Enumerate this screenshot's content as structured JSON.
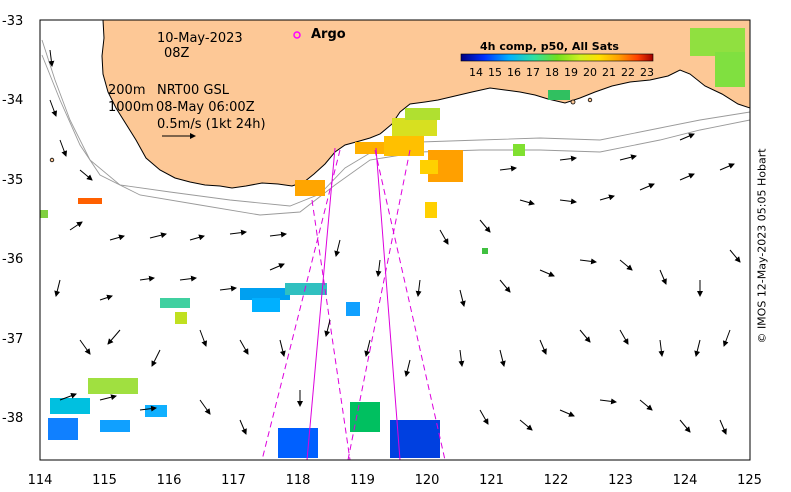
{
  "map": {
    "date_label": "10-May-2023",
    "time_label": "08Z",
    "argo_label": "Argo",
    "sst_title": "4h comp, p50, All Sats",
    "sst_ticks": [
      "14",
      "15",
      "16",
      "17",
      "18",
      "19",
      "20",
      "21",
      "22",
      "23"
    ],
    "depth_label_1": "200m",
    "depth_label_2": "1000m",
    "product_label": "NRT00 GSL",
    "product_date": "08-May 06:00Z",
    "scale_label": "0.5m/s (1kt 24h)",
    "credit": "© IMOS 12-May-2023 05:05 Hobart",
    "lat_labels": [
      "-33",
      "-34",
      "-35",
      "-36",
      "-37",
      "-38"
    ],
    "lon_labels": [
      "114",
      "115",
      "116",
      "117",
      "118",
      "119",
      "120",
      "121",
      "122",
      "123",
      "124",
      "125"
    ],
    "colors": {
      "land": "#fdc896",
      "argo": "#ff00ff",
      "track": "#dd00dd",
      "isobath": "#9a9a9a"
    }
  }
}
